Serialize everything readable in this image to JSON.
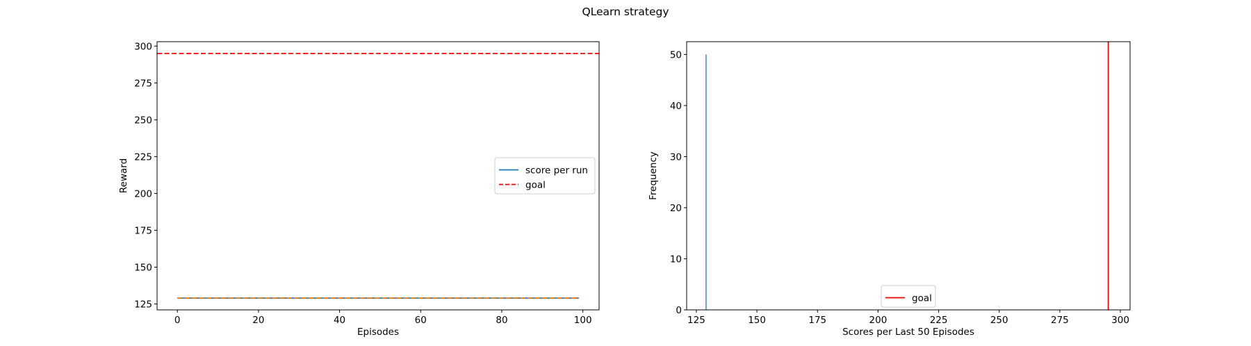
{
  "figure": {
    "title": "QLearn strategy"
  },
  "chart_data": [
    {
      "type": "line",
      "xlabel": "Episodes",
      "ylabel": "Reward",
      "xlim": [
        -5,
        104
      ],
      "ylim": [
        121,
        303
      ],
      "xticks": [
        0,
        20,
        40,
        60,
        80,
        100
      ],
      "yticks": [
        125,
        150,
        175,
        200,
        225,
        250,
        275,
        300
      ],
      "x": [
        0,
        99
      ],
      "series": [
        {
          "name": "score per run",
          "values": [
            129,
            129
          ],
          "color": "#1f77b4",
          "style": "solid"
        },
        {
          "name": "",
          "values": [
            129,
            129
          ],
          "color": "#ff7f0e",
          "style": "dashed"
        }
      ],
      "hlines": [
        {
          "name": "goal",
          "y": 295,
          "color": "#ff0000",
          "style": "dashed"
        }
      ],
      "legend": {
        "placement": "center-right",
        "entries": [
          {
            "label": "score per run",
            "color": "#1f77b4",
            "style": "solid"
          },
          {
            "label": "goal",
            "color": "#ff0000",
            "style": "dashed"
          }
        ]
      },
      "grid": false
    },
    {
      "type": "bar",
      "subtype": "histogram",
      "xlabel": "Scores per Last 50 Episodes",
      "ylabel": "Frequency",
      "xlim": [
        121,
        304
      ],
      "ylim": [
        0,
        52.5
      ],
      "xticks": [
        125,
        150,
        175,
        200,
        225,
        250,
        275,
        300
      ],
      "yticks": [
        0,
        10,
        20,
        30,
        40,
        50
      ],
      "bins": [
        {
          "x": 129,
          "value": 50
        }
      ],
      "bar_color": "#1f77b4",
      "vlines": [
        {
          "name": "goal",
          "x": 295,
          "color": "#ff0000",
          "style": "solid"
        }
      ],
      "legend": {
        "placement": "lower-center",
        "entries": [
          {
            "label": "goal",
            "color": "#ff0000",
            "style": "solid"
          }
        ]
      },
      "grid": false
    }
  ]
}
